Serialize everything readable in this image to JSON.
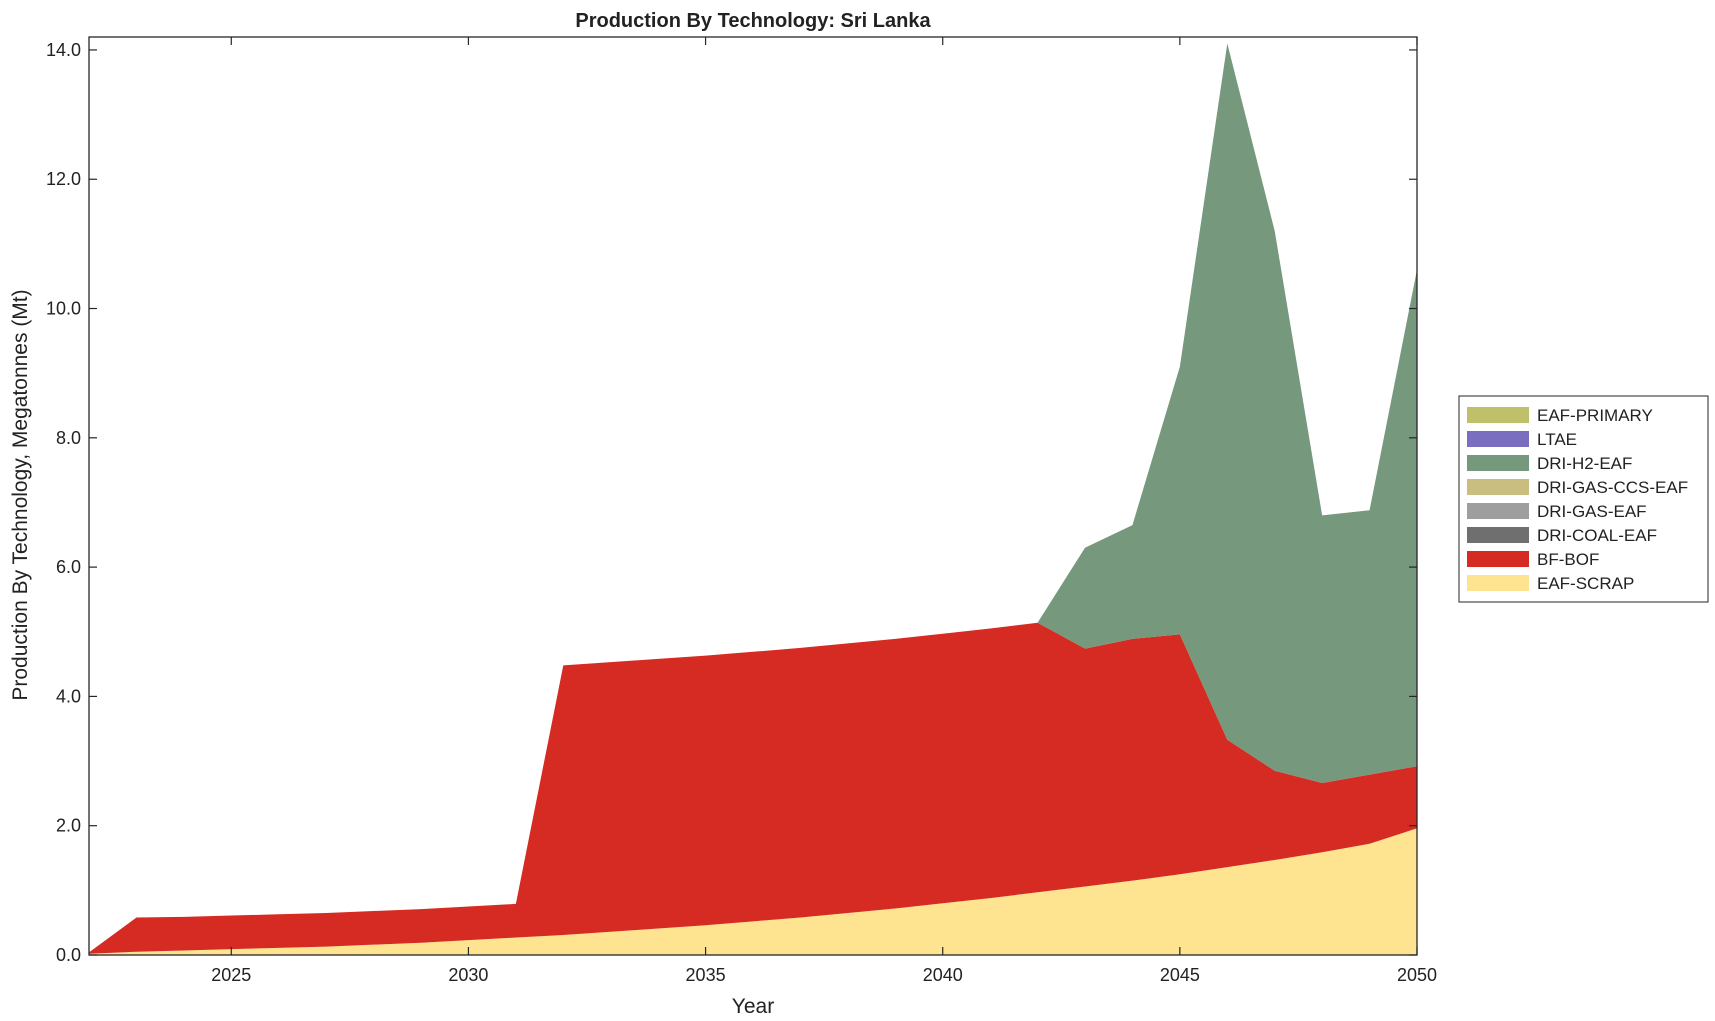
{
  "chart_data": {
    "type": "area",
    "stacked": true,
    "title": "Production By Technology: Sri Lanka",
    "xlabel": "Year",
    "ylabel": "Production By Technology, Megatonnes (Mt)",
    "xlim": [
      2022,
      2050
    ],
    "ylim": [
      0,
      14.2
    ],
    "xticks": [
      2025,
      2030,
      2035,
      2040,
      2045,
      2050
    ],
    "xtick_labels": [
      "2025",
      "2030",
      "2035",
      "2040",
      "2045",
      "2050"
    ],
    "yticks": [
      0,
      2,
      4,
      6,
      8,
      10,
      12,
      14
    ],
    "ytick_labels": [
      "0.0",
      "2.0",
      "4.0",
      "6.0",
      "8.0",
      "10.0",
      "12.0",
      "14.0"
    ],
    "grid": false,
    "legend_position": "outside-right",
    "x": [
      2022,
      2023,
      2024,
      2025,
      2026,
      2027,
      2028,
      2029,
      2030,
      2031,
      2032,
      2033,
      2034,
      2035,
      2036,
      2037,
      2038,
      2039,
      2040,
      2041,
      2042,
      2043,
      2044,
      2045,
      2046,
      2047,
      2048,
      2049,
      2050
    ],
    "series": [
      {
        "name": "EAF-SCRAP",
        "color": "#FEE391",
        "values": [
          0.02,
          0.05,
          0.07,
          0.09,
          0.11,
          0.13,
          0.16,
          0.19,
          0.23,
          0.27,
          0.31,
          0.36,
          0.41,
          0.46,
          0.52,
          0.58,
          0.65,
          0.72,
          0.8,
          0.88,
          0.97,
          1.06,
          1.15,
          1.25,
          1.36,
          1.47,
          1.59,
          1.72,
          1.96
        ]
      },
      {
        "name": "BF-BOF",
        "color": "#D52B23",
        "values": [
          0.02,
          0.53,
          0.52,
          0.52,
          0.52,
          0.52,
          0.52,
          0.52,
          0.52,
          0.52,
          4.17,
          4.17,
          4.17,
          4.17,
          4.17,
          4.17,
          4.17,
          4.17,
          4.17,
          4.17,
          4.17,
          3.68,
          3.74,
          3.71,
          1.97,
          1.38,
          1.07,
          1.07,
          0.96
        ]
      },
      {
        "name": "DRI-COAL-EAF",
        "color": "#6F6F6F",
        "values": [
          0,
          0,
          0,
          0,
          0,
          0,
          0,
          0,
          0,
          0,
          0,
          0,
          0,
          0,
          0,
          0,
          0,
          0,
          0,
          0,
          0,
          0,
          0,
          0,
          0,
          0,
          0,
          0,
          0
        ]
      },
      {
        "name": "DRI-GAS-EAF",
        "color": "#9E9E9E",
        "values": [
          0,
          0,
          0,
          0,
          0,
          0,
          0,
          0,
          0,
          0,
          0,
          0,
          0,
          0,
          0,
          0,
          0,
          0,
          0,
          0,
          0,
          0,
          0,
          0,
          0,
          0,
          0,
          0,
          0
        ]
      },
      {
        "name": "DRI-GAS-CCS-EAF",
        "color": "#C9BE80",
        "values": [
          0,
          0,
          0,
          0,
          0,
          0,
          0,
          0,
          0,
          0,
          0,
          0,
          0,
          0,
          0,
          0,
          0,
          0,
          0,
          0,
          0,
          0,
          0,
          0,
          0,
          0,
          0,
          0,
          0
        ]
      },
      {
        "name": "DRI-H2-EAF",
        "color": "#76987C",
        "values": [
          0,
          0,
          0,
          0,
          0,
          0,
          0,
          0,
          0,
          0,
          0,
          0,
          0,
          0,
          0,
          0,
          0,
          0,
          0,
          0,
          0,
          1.56,
          1.76,
          4.14,
          10.77,
          8.35,
          4.14,
          4.09,
          7.68
        ]
      },
      {
        "name": "LTAE",
        "color": "#7A6EC0",
        "values": [
          0,
          0,
          0,
          0,
          0,
          0,
          0,
          0,
          0,
          0,
          0,
          0,
          0,
          0,
          0,
          0,
          0,
          0,
          0,
          0,
          0,
          0,
          0,
          0,
          0,
          0,
          0,
          0,
          0
        ]
      },
      {
        "name": "EAF-PRIMARY",
        "color": "#BFC16A",
        "values": [
          0,
          0,
          0,
          0,
          0,
          0,
          0,
          0,
          0,
          0,
          0,
          0,
          0,
          0,
          0,
          0,
          0,
          0,
          0,
          0,
          0,
          0,
          0,
          0,
          0,
          0,
          0,
          0,
          0
        ]
      }
    ],
    "legend_order": [
      "EAF-PRIMARY",
      "LTAE",
      "DRI-H2-EAF",
      "DRI-GAS-CCS-EAF",
      "DRI-GAS-EAF",
      "DRI-COAL-EAF",
      "BF-BOF",
      "EAF-SCRAP"
    ]
  }
}
